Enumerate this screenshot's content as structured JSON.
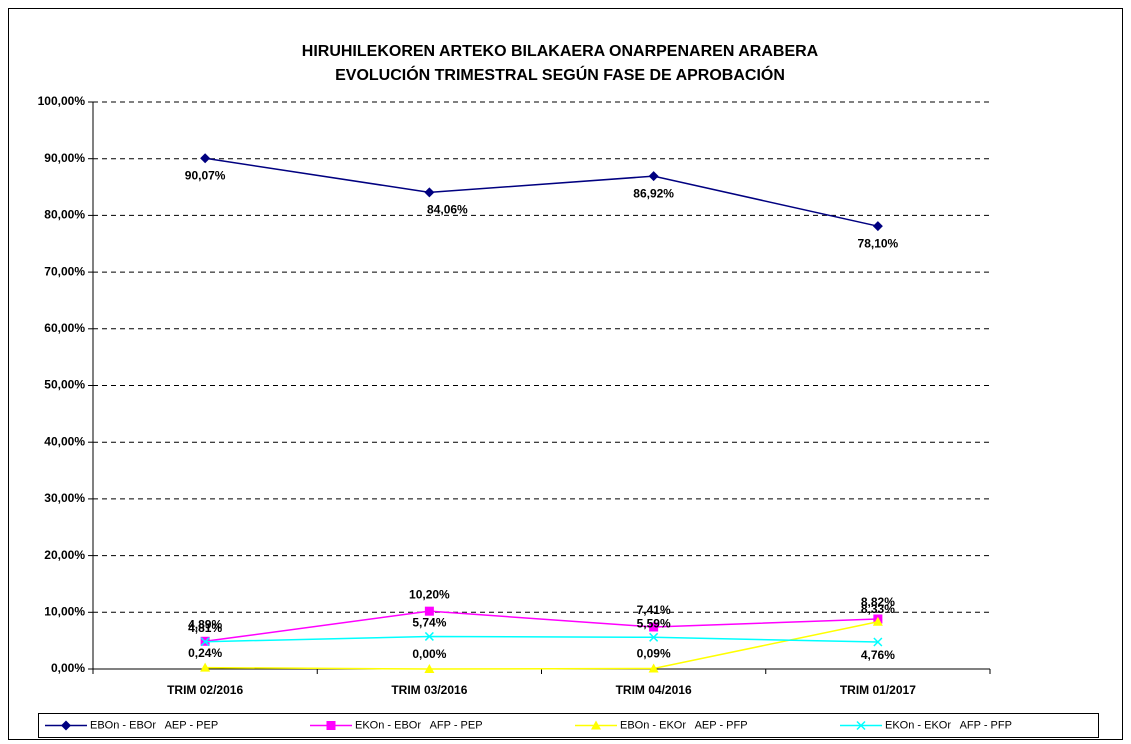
{
  "chart_data": {
    "type": "line",
    "title": "HIRUHILEKOREN ARTEKO BILAKAERA ONARPENAREN ARABERA",
    "subtitle": "EVOLUCIÓN TRIMESTRAL SEGÚN FASE DE APROBACIÓN",
    "categories": [
      "TRIM 02/2016",
      "TRIM 03/2016",
      "TRIM 04/2016",
      "TRIM 01/2017"
    ],
    "series": [
      {
        "name": "EBOn - EBOr   AEP - PEP",
        "color": "#000080",
        "marker": "diamond",
        "values": [
          90.07,
          84.06,
          86.92,
          78.1
        ],
        "value_labels": [
          "90,07%",
          "84,06%",
          "86,92%",
          "78,10%"
        ]
      },
      {
        "name": "EKOn - EBOr   AFP - PEP",
        "color": "#ff00ff",
        "marker": "square",
        "values": [
          4.89,
          10.2,
          7.41,
          8.82
        ],
        "value_labels": [
          "4,89%",
          "10,20%",
          "7,41%",
          "8,82%"
        ]
      },
      {
        "name": "EBOn - EKOr   AEP - PFP",
        "color": "#ffff00",
        "marker": "triangle",
        "values": [
          0.24,
          0.0,
          0.09,
          8.33
        ],
        "value_labels": [
          "0,24%",
          "0,00%",
          "0,09%",
          "8,33%"
        ]
      },
      {
        "name": "EKOn - EKOr   AFP - PFP",
        "color": "#00ffff",
        "marker": "x",
        "values": [
          4.81,
          5.74,
          5.59,
          4.76
        ],
        "value_labels": [
          "4,81%",
          "5,74%",
          "5,59%",
          "4,76%"
        ]
      }
    ],
    "ylim": [
      0,
      100
    ],
    "yticks": [
      {
        "value": 0,
        "label": "0,00%"
      },
      {
        "value": 10,
        "label": "10,00%"
      },
      {
        "value": 20,
        "label": "20,00%"
      },
      {
        "value": 30,
        "label": "30,00%"
      },
      {
        "value": 40,
        "label": "40,00%"
      },
      {
        "value": 50,
        "label": "50,00%"
      },
      {
        "value": 60,
        "label": "60,00%"
      },
      {
        "value": 70,
        "label": "70,00%"
      },
      {
        "value": 80,
        "label": "80,00%"
      },
      {
        "value": 90,
        "label": "90,00%"
      },
      {
        "value": 100,
        "label": "100,00%"
      }
    ],
    "grid": true,
    "legend": "bottom"
  }
}
